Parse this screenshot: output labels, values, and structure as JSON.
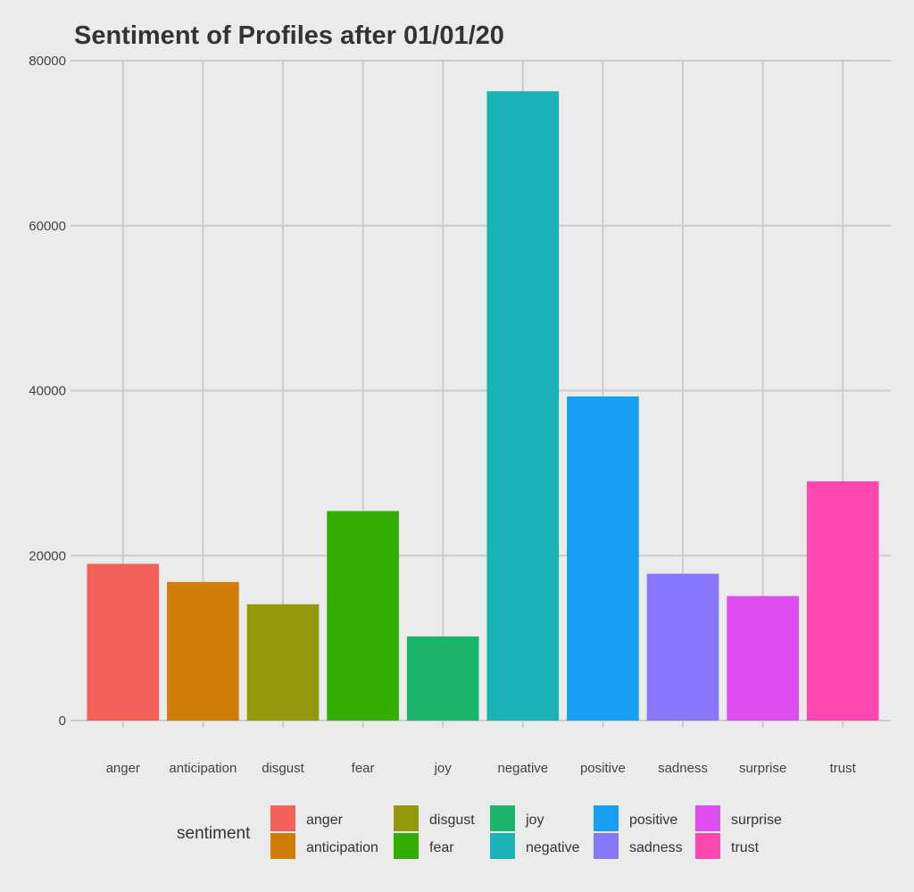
{
  "chart_data": {
    "type": "bar",
    "title": "Sentiment of Profiles after 01/01/20",
    "xlabel": "",
    "ylabel": "",
    "categories": [
      "anger",
      "anticipation",
      "disgust",
      "fear",
      "joy",
      "negative",
      "positive",
      "sadness",
      "surprise",
      "trust"
    ],
    "values": [
      19000,
      16800,
      14100,
      25400,
      10200,
      76300,
      39300,
      17800,
      15100,
      29000
    ],
    "colors": [
      "#F8766D",
      "#D39200",
      "#93AA00",
      "#00BA38",
      "#00C19F",
      "#00B9E3",
      "#619CFF",
      "#DB72FB",
      "#FF61C3",
      "#FF61C3"
    ],
    "bar_colors": [
      "#F4615B",
      "#CF7D07",
      "#94990A",
      "#33AD00",
      "#1AB46B",
      "#19B3B8",
      "#17A0F3",
      "#8777FD",
      "#DE4DEF",
      "#FD47B0"
    ],
    "ylim": [
      0,
      80000
    ],
    "yticks": [
      "0",
      "20000",
      "40000",
      "60000",
      "80000"
    ],
    "grid": true,
    "legend": {
      "title": "sentiment",
      "position": "bottom",
      "entries": [
        "anger",
        "anticipation",
        "disgust",
        "fear",
        "joy",
        "negative",
        "positive",
        "sadness",
        "surprise",
        "trust"
      ]
    }
  }
}
